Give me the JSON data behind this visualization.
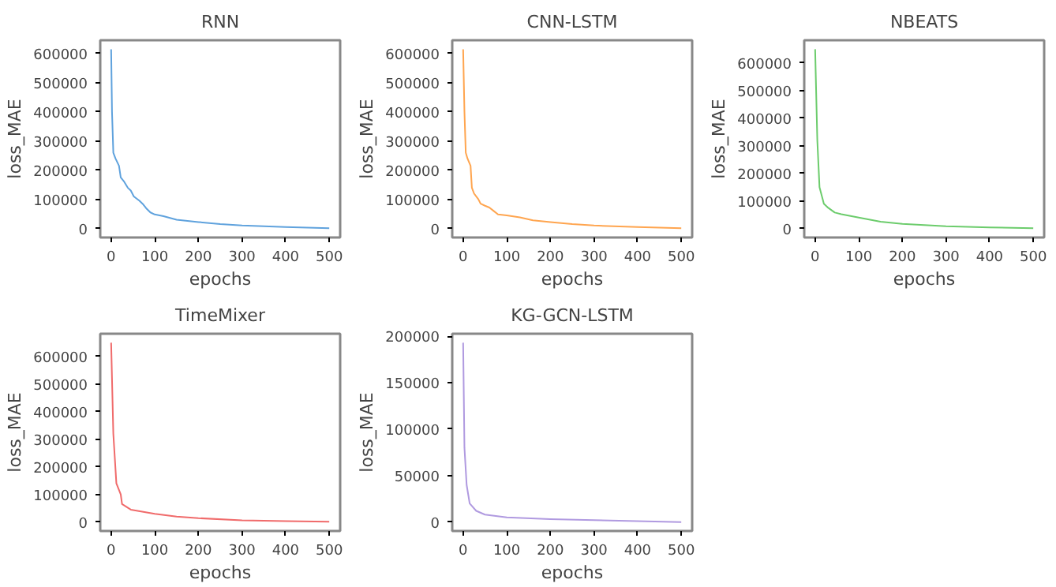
{
  "chart_data": [
    {
      "type": "line",
      "title": "RNN",
      "xlabel": "epochs",
      "ylabel": "loss_MAE",
      "xlim": [
        -25,
        525
      ],
      "ylim": [
        -31000,
        646000
      ],
      "xticks": [
        0,
        100,
        200,
        300,
        400,
        500
      ],
      "yticks": [
        0,
        100000,
        200000,
        300000,
        400000,
        500000,
        600000
      ],
      "series": [
        {
          "color": "#5fa2dd",
          "x": [
            0,
            2,
            5,
            10,
            18,
            22,
            30,
            38,
            45,
            52,
            65,
            72,
            80,
            90,
            100,
            120,
            150,
            200,
            250,
            300,
            400,
            500
          ],
          "values": [
            615000,
            400000,
            260000,
            240000,
            215000,
            175000,
            160000,
            140000,
            130000,
            110000,
            95000,
            85000,
            70000,
            55000,
            48000,
            42000,
            30000,
            22000,
            15000,
            10000,
            5000,
            1000
          ]
        }
      ]
    },
    {
      "type": "line",
      "title": "CNN-LSTM",
      "xlabel": "epochs",
      "ylabel": "loss_MAE",
      "xlim": [
        -25,
        525
      ],
      "ylim": [
        -31000,
        646000
      ],
      "xticks": [
        0,
        100,
        200,
        300,
        400,
        500
      ],
      "yticks": [
        0,
        100000,
        200000,
        300000,
        400000,
        500000,
        600000
      ],
      "series": [
        {
          "color": "#ffa54f",
          "x": [
            0,
            3,
            6,
            10,
            17,
            20,
            25,
            35,
            40,
            50,
            60,
            70,
            80,
            100,
            130,
            160,
            200,
            250,
            300,
            400,
            500
          ],
          "values": [
            615000,
            400000,
            260000,
            240000,
            215000,
            140000,
            120000,
            100000,
            85000,
            78000,
            72000,
            60000,
            48000,
            45000,
            38000,
            28000,
            22000,
            15000,
            10000,
            5000,
            1000
          ]
        }
      ]
    },
    {
      "type": "line",
      "title": "NBEATS",
      "xlabel": "epochs",
      "ylabel": "loss_MAE",
      "xlim": [
        -25,
        525
      ],
      "ylim": [
        -32500,
        682500
      ],
      "xticks": [
        0,
        100,
        200,
        300,
        400,
        500
      ],
      "yticks": [
        0,
        100000,
        200000,
        300000,
        400000,
        500000,
        600000
      ],
      "series": [
        {
          "color": "#6ccc6c",
          "x": [
            0,
            5,
            10,
            20,
            30,
            45,
            60,
            100,
            150,
            200,
            300,
            400,
            500
          ],
          "values": [
            650000,
            320000,
            150000,
            90000,
            75000,
            58000,
            52000,
            40000,
            25000,
            17000,
            8000,
            4000,
            1000
          ]
        }
      ]
    },
    {
      "type": "line",
      "title": "TimeMixer",
      "xlabel": "epochs",
      "ylabel": "loss_MAE",
      "xlim": [
        -25,
        525
      ],
      "ylim": [
        -32500,
        682500
      ],
      "xticks": [
        0,
        100,
        200,
        300,
        400,
        500
      ],
      "yticks": [
        0,
        100000,
        200000,
        300000,
        400000,
        500000,
        600000
      ],
      "series": [
        {
          "color": "#f06b6b",
          "x": [
            0,
            5,
            12,
            22,
            25,
            45,
            100,
            150,
            200,
            300,
            400,
            500
          ],
          "values": [
            650000,
            320000,
            140000,
            100000,
            65000,
            45000,
            30000,
            20000,
            14000,
            6000,
            3000,
            1000
          ]
        }
      ]
    },
    {
      "type": "line",
      "title": "KG-GCN-LSTM",
      "xlabel": "epochs",
      "ylabel": "loss_MAE",
      "xlim": [
        -25,
        525
      ],
      "ylim": [
        -9650,
        202650
      ],
      "xticks": [
        0,
        100,
        200,
        300,
        400,
        500
      ],
      "yticks": [
        0,
        50000,
        100000,
        150000,
        200000
      ],
      "series": [
        {
          "color": "#b09ae0",
          "x": [
            0,
            3,
            8,
            15,
            30,
            50,
            100,
            200,
            300,
            500
          ],
          "values": [
            193000,
            80000,
            40000,
            20000,
            12000,
            8000,
            5000,
            3000,
            2000,
            0
          ]
        }
      ]
    }
  ]
}
